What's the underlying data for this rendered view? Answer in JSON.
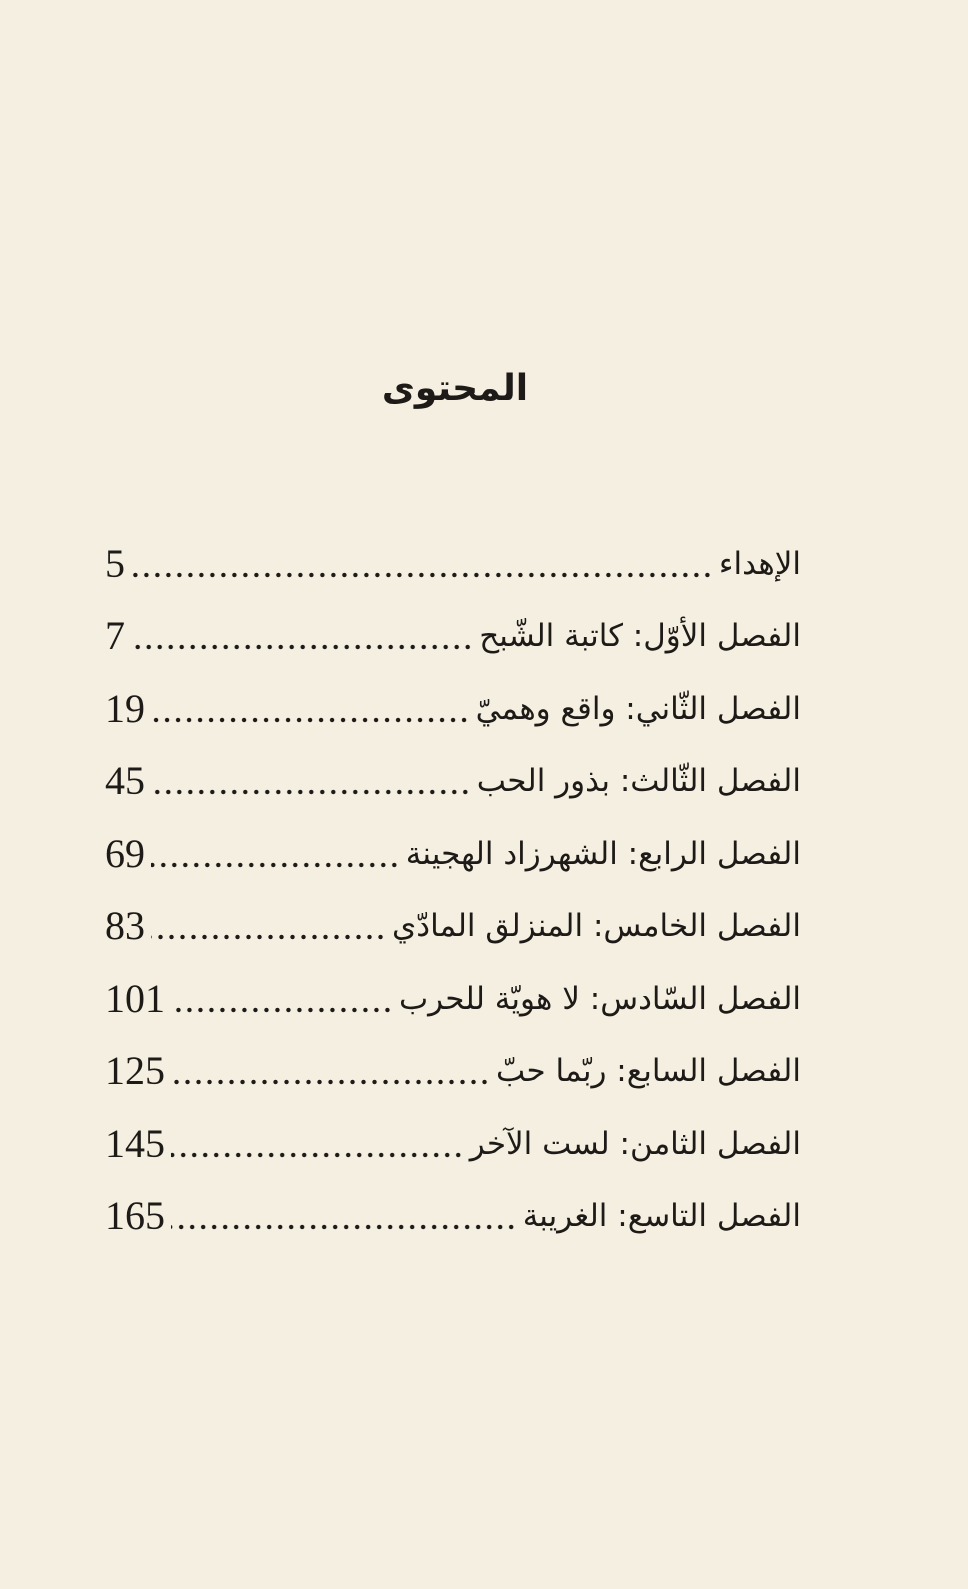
{
  "title": "المحتوى",
  "entries": [
    {
      "label": "الإهداء",
      "page": "5"
    },
    {
      "label": "الفصل الأوّل: كاتبة الشّبح",
      "page": "7"
    },
    {
      "label": "الفصل الثّاني: واقع وهميّ",
      "page": "19"
    },
    {
      "label": "الفصل الثّالث: بذور الحب",
      "page": "45"
    },
    {
      "label": "الفصل الرابع: الشهرزاد الهجينة",
      "page": "69"
    },
    {
      "label": "الفصل الخامس: المنزلق المادّي",
      "page": "83"
    },
    {
      "label": "الفصل السّادس: لا هويّة للحرب",
      "page": "101"
    },
    {
      "label": "الفصل السابع: ربّما حبّ",
      "page": "125"
    },
    {
      "label": "الفصل الثامن: لست الآخر",
      "page": "145"
    },
    {
      "label": "الفصل التاسع: الغريبة",
      "page": "165"
    }
  ]
}
